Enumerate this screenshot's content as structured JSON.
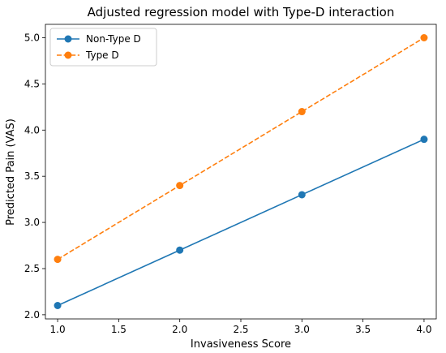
{
  "chart_data": {
    "type": "line",
    "title": "Adjusted regression model with Type-D interaction",
    "xlabel": "Invasiveness Score",
    "ylabel": "Predicted Pain (VAS)",
    "x": [
      1.0,
      2.0,
      3.0,
      4.0
    ],
    "xlim": [
      0.9,
      4.1
    ],
    "ylim": [
      1.955,
      5.145
    ],
    "x_ticks": [
      "1.0",
      "1.5",
      "2.0",
      "2.5",
      "3.0",
      "3.5",
      "4.0"
    ],
    "y_ticks": [
      "2.0",
      "2.5",
      "3.0",
      "3.5",
      "4.0",
      "4.5",
      "5.0"
    ],
    "grid": false,
    "legend_position": "top-left",
    "series": [
      {
        "name": "Non-Type D",
        "values": [
          2.1,
          2.7,
          3.3,
          3.9
        ],
        "color": "#1f77b4",
        "line_style": "solid",
        "marker": "circle"
      },
      {
        "name": "Type D",
        "values": [
          2.6,
          3.4,
          4.2,
          5.0
        ],
        "color": "#ff7f0e",
        "line_style": "dashed",
        "marker": "circle"
      }
    ]
  }
}
